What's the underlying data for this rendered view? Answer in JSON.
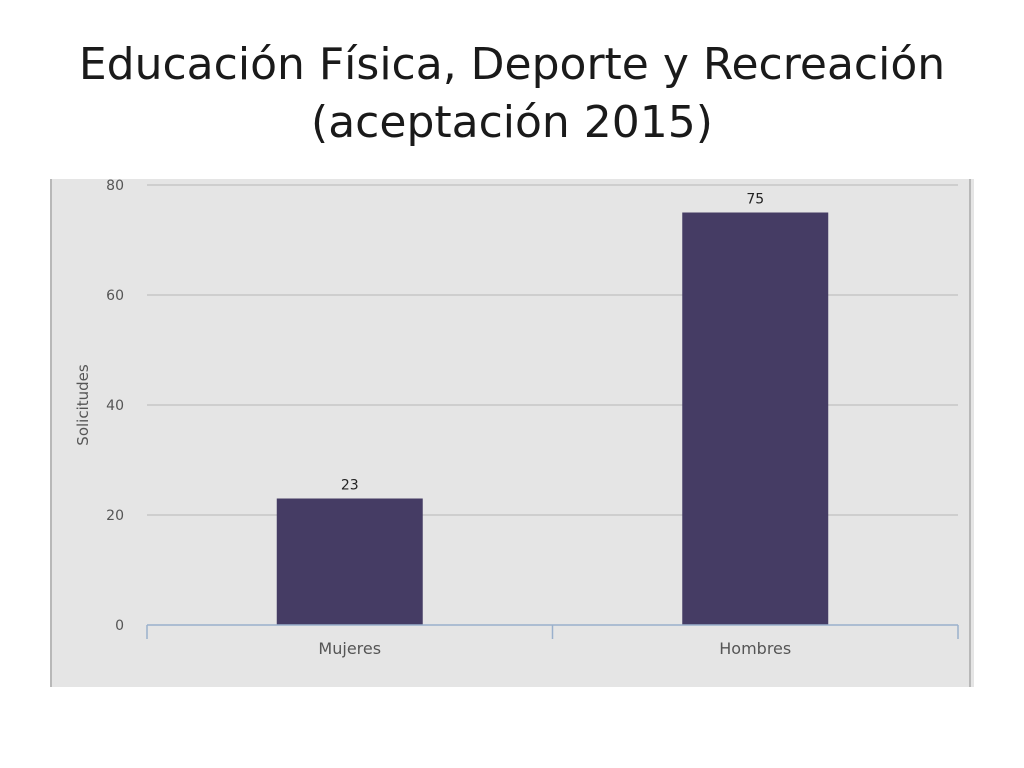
{
  "slide": {
    "title_line1": "Educación Física, Deporte y Recreación",
    "title_line2": "(aceptación 2015)"
  },
  "chart_data": {
    "type": "bar",
    "categories": [
      "Mujeres",
      "Hombres"
    ],
    "values": [
      23,
      75
    ],
    "ylabel": "Solicitudes",
    "xlabel": "",
    "ylim": [
      0,
      80
    ],
    "yticks": [
      0,
      20,
      40,
      60,
      80
    ],
    "data_labels": true,
    "grid": true,
    "legend": "none",
    "colors": {
      "bar": "#453c64",
      "plot_background": "#e5e5e5",
      "grid": "#c6c6c6",
      "axis": "#9ab0cc"
    }
  }
}
